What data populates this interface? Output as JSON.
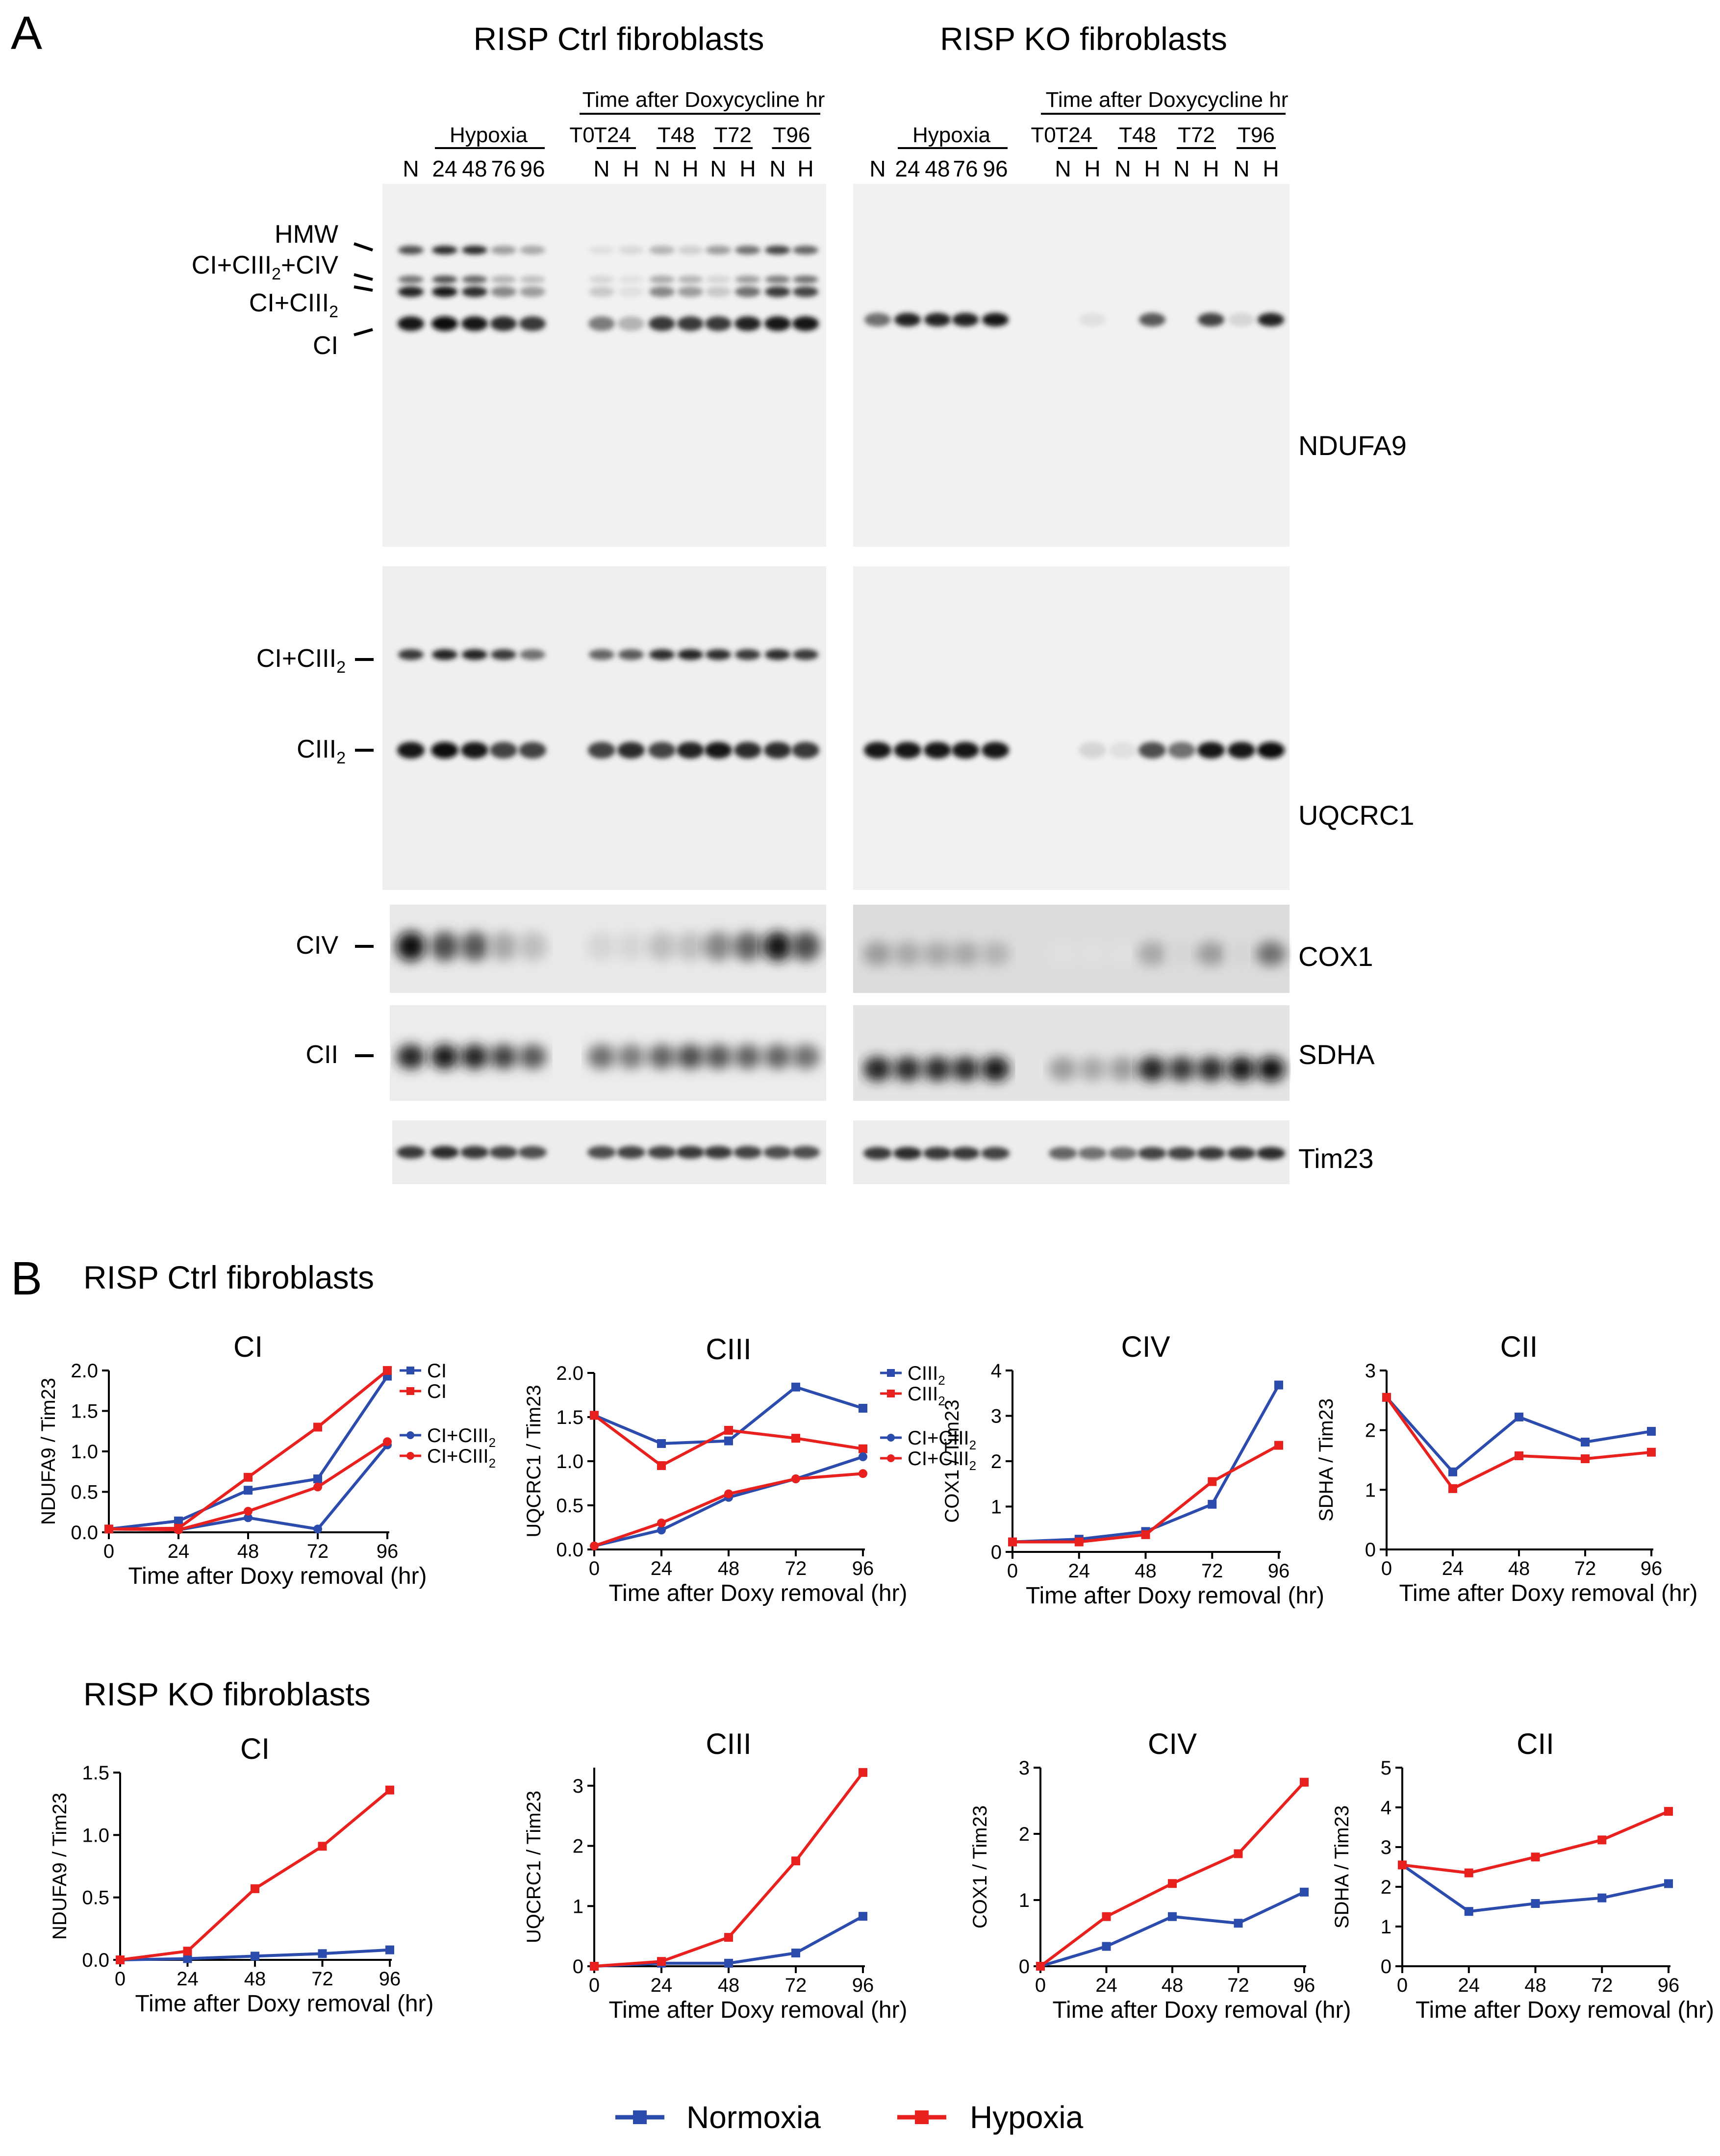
{
  "panelA": {
    "letter": "A",
    "ctrl_title": "RISP Ctrl fibroblasts",
    "ko_title": "RISP KO fibroblasts",
    "hypoxia_label": "Hypoxia",
    "doxy_label": "Time after Doxycycline hr",
    "time_groups": [
      "T0",
      "T24",
      "T48",
      "T72",
      "T96"
    ],
    "lane_labels": [
      "N",
      "24",
      "48",
      "76",
      "96",
      "N",
      "H",
      "N",
      "H",
      "N",
      "H",
      "N",
      "H"
    ],
    "ndufa9": {
      "antibody": "NDUFA9",
      "bands": [
        "HMW",
        "CI+CIII2+CIV",
        "CI+CIII2",
        "CI"
      ]
    },
    "uqcrc1": {
      "antibody": "UQCRC1",
      "bands": [
        "CI+CIII2",
        "CIII2"
      ]
    },
    "cox1": {
      "antibody": "COX1",
      "band": "CIV"
    },
    "sdha": {
      "antibody": "SDHA",
      "band": "CII"
    },
    "tim23": {
      "antibody": "Tim23"
    }
  },
  "panelB": {
    "letter": "B",
    "ctrl_title": "RISP Ctrl fibroblasts",
    "ko_title": "RISP KO fibroblasts",
    "legend": {
      "normoxia": "Normoxia",
      "hypoxia": "Hypoxia"
    },
    "colors": {
      "normoxia": "#2b4bad",
      "hypoxia": "#e8201e"
    }
  },
  "chart_data": [
    {
      "type": "line",
      "group": "RISP Ctrl fibroblasts",
      "title": "CI",
      "xlabel": "Time after Doxy removal (hr)",
      "ylabel": "NDUFA9 / Tim23",
      "x": [
        0,
        24,
        48,
        72,
        96
      ],
      "xlim": [
        0,
        96
      ],
      "ylim": [
        0,
        2.0
      ],
      "yticks": [
        "0.0",
        "0.5",
        "1.0",
        "1.5",
        "2.0"
      ],
      "series": [
        {
          "name": "CI",
          "condition": "Normoxia",
          "values": [
            0.04,
            0.14,
            0.52,
            0.66,
            1.93
          ]
        },
        {
          "name": "CI",
          "condition": "Hypoxia",
          "values": [
            0.04,
            0.05,
            0.68,
            1.3,
            2.0
          ]
        },
        {
          "name": "CI+CIII2",
          "condition": "Normoxia",
          "values": [
            0.04,
            0.03,
            0.18,
            0.04,
            1.08
          ]
        },
        {
          "name": "CI+CIII2",
          "condition": "Hypoxia",
          "values": [
            0.04,
            0.03,
            0.26,
            0.56,
            1.12
          ]
        }
      ]
    },
    {
      "type": "line",
      "group": "RISP Ctrl fibroblasts",
      "title": "CIII",
      "xlabel": "Time after Doxy removal (hr)",
      "ylabel": "UQCRC1 / Tim23",
      "x": [
        0,
        24,
        48,
        72,
        96
      ],
      "xlim": [
        0,
        96
      ],
      "ylim": [
        0,
        2.0
      ],
      "yticks": [
        "0.0",
        "0.5",
        "1.0",
        "1.5",
        "2.0"
      ],
      "series": [
        {
          "name": "CIII2",
          "condition": "Normoxia",
          "values": [
            1.52,
            1.2,
            1.23,
            1.84,
            1.6
          ]
        },
        {
          "name": "CIII2",
          "condition": "Hypoxia",
          "values": [
            1.52,
            0.95,
            1.35,
            1.26,
            1.14
          ]
        },
        {
          "name": "CI+CIII2",
          "condition": "Normoxia",
          "values": [
            0.04,
            0.22,
            0.59,
            0.8,
            1.05
          ]
        },
        {
          "name": "CI+CIII2",
          "condition": "Hypoxia",
          "values": [
            0.04,
            0.3,
            0.63,
            0.8,
            0.86
          ]
        }
      ]
    },
    {
      "type": "line",
      "group": "RISP Ctrl fibroblasts",
      "title": "CIV",
      "xlabel": "Time after Doxy removal (hr)",
      "ylabel": "COX1 / Tim23",
      "x": [
        0,
        24,
        48,
        72,
        96
      ],
      "xlim": [
        0,
        96
      ],
      "ylim": [
        0,
        4
      ],
      "yticks": [
        "0",
        "1",
        "2",
        "3",
        "4"
      ],
      "series": [
        {
          "name": "CIV",
          "condition": "Normoxia",
          "values": [
            0.22,
            0.28,
            0.45,
            1.05,
            3.68
          ]
        },
        {
          "name": "CIV",
          "condition": "Hypoxia",
          "values": [
            0.22,
            0.22,
            0.38,
            1.55,
            2.35
          ]
        }
      ]
    },
    {
      "type": "line",
      "group": "RISP Ctrl fibroblasts",
      "title": "CII",
      "xlabel": "Time after Doxy removal (hr)",
      "ylabel": "SDHA / Tim23",
      "x": [
        0,
        24,
        48,
        72,
        96
      ],
      "xlim": [
        0,
        96
      ],
      "ylim": [
        0,
        3
      ],
      "yticks": [
        "0",
        "1",
        "2",
        "3"
      ],
      "series": [
        {
          "name": "CII",
          "condition": "Normoxia",
          "values": [
            2.55,
            1.3,
            2.22,
            1.8,
            1.98
          ]
        },
        {
          "name": "CII",
          "condition": "Hypoxia",
          "values": [
            2.55,
            1.02,
            1.57,
            1.52,
            1.63
          ]
        }
      ]
    },
    {
      "type": "line",
      "group": "RISP KO fibroblasts",
      "title": "CI",
      "xlabel": "Time after Doxy removal (hr)",
      "ylabel": "NDUFA9 / Tim23",
      "x": [
        0,
        24,
        48,
        72,
        96
      ],
      "xlim": [
        0,
        96
      ],
      "ylim": [
        0,
        1.5
      ],
      "yticks": [
        "0.0",
        "0.5",
        "1.0",
        "1.5"
      ],
      "series": [
        {
          "name": "CI",
          "condition": "Normoxia",
          "values": [
            0.0,
            0.01,
            0.03,
            0.05,
            0.08
          ]
        },
        {
          "name": "CI",
          "condition": "Hypoxia",
          "values": [
            0.0,
            0.07,
            0.57,
            0.91,
            1.36
          ]
        }
      ]
    },
    {
      "type": "line",
      "group": "RISP KO fibroblasts",
      "title": "CIII",
      "xlabel": "Time after Doxy removal (hr)",
      "ylabel": "UQCRC1 / Tim23",
      "x": [
        0,
        24,
        48,
        72,
        96
      ],
      "xlim": [
        0,
        96
      ],
      "ylim": [
        0,
        3.3
      ],
      "yticks": [
        "0",
        "1",
        "2",
        "3"
      ],
      "series": [
        {
          "name": "CIII",
          "condition": "Normoxia",
          "values": [
            0.0,
            0.05,
            0.05,
            0.22,
            0.83
          ]
        },
        {
          "name": "CIII",
          "condition": "Hypoxia",
          "values": [
            0.0,
            0.08,
            0.48,
            1.75,
            3.22
          ]
        }
      ]
    },
    {
      "type": "line",
      "group": "RISP KO fibroblasts",
      "title": "CIV",
      "xlabel": "Time after Doxy removal (hr)",
      "ylabel": "COX1 / Tim23",
      "x": [
        0,
        24,
        48,
        72,
        96
      ],
      "xlim": [
        0,
        96
      ],
      "ylim": [
        0,
        3
      ],
      "yticks": [
        "0",
        "1",
        "2",
        "3"
      ],
      "series": [
        {
          "name": "CIV",
          "condition": "Normoxia",
          "values": [
            0.0,
            0.3,
            0.75,
            0.65,
            1.12
          ]
        },
        {
          "name": "CIV",
          "condition": "Hypoxia",
          "values": [
            0.0,
            0.75,
            1.25,
            1.7,
            2.78
          ]
        }
      ]
    },
    {
      "type": "line",
      "group": "RISP KO fibroblasts",
      "title": "CII",
      "xlabel": "Time after Doxy removal (hr)",
      "ylabel": "SDHA / Tim23",
      "x": [
        0,
        24,
        48,
        72,
        96
      ],
      "xlim": [
        0,
        96
      ],
      "ylim": [
        0,
        5
      ],
      "yticks": [
        "0",
        "1",
        "2",
        "3",
        "4",
        "5"
      ],
      "series": [
        {
          "name": "CII",
          "condition": "Normoxia",
          "values": [
            2.55,
            1.38,
            1.58,
            1.72,
            2.08
          ]
        },
        {
          "name": "CII",
          "condition": "Hypoxia",
          "values": [
            2.55,
            2.35,
            2.75,
            3.18,
            3.9
          ]
        }
      ]
    }
  ]
}
